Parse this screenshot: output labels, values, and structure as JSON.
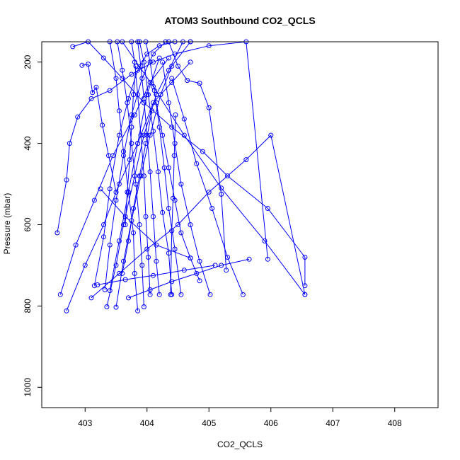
{
  "chart_data": {
    "type": "line",
    "title": "ATOM3 Southbound CO2_QCLS",
    "xlabel": "CO2_QCLS",
    "ylabel": "Pressure (mbar)",
    "xlim": [
      402.3,
      408.7
    ],
    "ylim": [
      1050,
      150
    ],
    "y_reversed": true,
    "xticks": [
      403,
      404,
      405,
      406,
      407,
      408
    ],
    "yticks": [
      200,
      400,
      600,
      800,
      1000
    ],
    "color": "#0000ff",
    "grid": false,
    "legend": "none",
    "series": [
      {
        "x": [
          402.8,
          403.05,
          403.3,
          403.6,
          403.95,
          404.4,
          404.9,
          405.3,
          405.95,
          406.55,
          406.55
        ],
        "y": [
          162,
          150,
          190,
          240,
          300,
          360,
          420,
          480,
          560,
          680,
          750
        ]
      },
      {
        "x": [
          402.55,
          402.7,
          402.75,
          402.88,
          403.1,
          403.4,
          403.75,
          404.1,
          404.45,
          405.0,
          405.6,
          405.95
        ],
        "y": [
          620,
          490,
          400,
          335,
          290,
          270,
          230,
          200,
          180,
          160,
          150,
          685
        ]
      },
      {
        "x": [
          402.7,
          403.0,
          403.3,
          403.55,
          403.85,
          404.1,
          404.4,
          404.7
        ],
        "y": [
          812,
          700,
          600,
          500,
          400,
          300,
          250,
          200
        ]
      },
      {
        "x": [
          402.6,
          402.85,
          403.15,
          403.45,
          403.8,
          404.05,
          404.35
        ],
        "y": [
          772,
          650,
          540,
          430,
          330,
          250,
          190
        ]
      },
      {
        "x": [
          402.95,
          403.05,
          403.12,
          403.18,
          403.28,
          403.38,
          403.5
        ],
        "y": [
          208,
          205,
          275,
          262,
          355,
          430,
          520
        ]
      },
      {
        "x": [
          403.15,
          403.3,
          403.4,
          403.55,
          403.7,
          403.85,
          404.0,
          404.2,
          404.45,
          404.7
        ],
        "y": [
          750,
          630,
          512,
          380,
          290,
          220,
          180,
          160,
          150,
          150
        ]
      },
      {
        "x": [
          403.32,
          403.4,
          403.5,
          403.62,
          403.75,
          403.92,
          404.1,
          404.3
        ],
        "y": [
          760,
          650,
          540,
          430,
          330,
          240,
          180,
          150
        ]
      },
      {
        "x": [
          403.35,
          403.5,
          403.62,
          403.8,
          403.95,
          404.15,
          404.35,
          404.58
        ],
        "y": [
          802,
          700,
          600,
          480,
          380,
          280,
          220,
          150
        ]
      },
      {
        "x": [
          403.5,
          403.62,
          403.75,
          403.9,
          404.05,
          404.22,
          404.4,
          404.7
        ],
        "y": [
          803,
          690,
          590,
          480,
          380,
          280,
          210,
          150
        ]
      },
      {
        "x": [
          403.85,
          403.8,
          403.78,
          403.7,
          403.62,
          403.55,
          403.5,
          403.4
        ],
        "y": [
          812,
          720,
          620,
          520,
          420,
          320,
          240,
          150
        ]
      },
      {
        "x": [
          403.95,
          403.92,
          403.88,
          403.82,
          403.75,
          403.68,
          403.6,
          403.52
        ],
        "y": [
          802,
          700,
          600,
          500,
          400,
          300,
          220,
          150
        ]
      },
      {
        "x": [
          404.05,
          404.02,
          403.98,
          403.95,
          403.9,
          403.85,
          403.8,
          403.75
        ],
        "y": [
          772,
          680,
          580,
          480,
          380,
          280,
          200,
          150
        ]
      },
      {
        "x": [
          404.2,
          404.15,
          404.1,
          404.05,
          404.0,
          403.95,
          403.9,
          403.85
        ],
        "y": [
          772,
          690,
          580,
          470,
          380,
          290,
          210,
          150
        ]
      },
      {
        "x": [
          404.4,
          404.35,
          404.25,
          404.18,
          404.1,
          404.02,
          403.95,
          403.88
        ],
        "y": [
          772,
          670,
          570,
          470,
          370,
          280,
          200,
          150
        ]
      },
      {
        "x": [
          404.55,
          404.45,
          404.35,
          404.28,
          404.2,
          404.12,
          404.05,
          403.98
        ],
        "y": [
          772,
          660,
          560,
          460,
          360,
          270,
          200,
          150
        ]
      },
      {
        "x": [
          404.85,
          404.7,
          404.55,
          404.45,
          404.35,
          404.25,
          404.15
        ],
        "y": [
          738,
          682,
          620,
          540,
          460,
          380,
          300
        ]
      },
      {
        "x": [
          405.02,
          404.85,
          404.7,
          404.55,
          404.45,
          404.35,
          404.25
        ],
        "y": [
          772,
          690,
          600,
          500,
          400,
          300,
          200
        ]
      },
      {
        "x": [
          405.28,
          405.2,
          405.0,
          404.85,
          404.65,
          404.5,
          404.35
        ],
        "y": [
          712,
          525,
          312,
          252,
          245,
          210,
          150
        ]
      },
      {
        "x": [
          405.55,
          405.3,
          405.05,
          404.8,
          404.6,
          404.4
        ],
        "y": [
          772,
          680,
          560,
          450,
          340,
          240
        ]
      },
      {
        "x": [
          405.65,
          405.2,
          404.8,
          404.4,
          404.05,
          403.7
        ],
        "y": [
          685,
          700,
          720,
          740,
          760,
          780
        ]
      },
      {
        "x": [
          406.55,
          405.9,
          405.2,
          404.6,
          404.1,
          403.6
        ],
        "y": [
          772,
          640,
          510,
          380,
          260,
          150
        ]
      },
      {
        "x": [
          403.1,
          403.55,
          404.0,
          404.5,
          405.0,
          405.6,
          406.0,
          406.55
        ],
        "y": [
          780,
          720,
          660,
          600,
          520,
          440,
          380,
          772
        ]
      },
      {
        "x": [
          403.2,
          403.65,
          404.1,
          404.6,
          405.1
        ],
        "y": [
          748,
          735,
          725,
          712,
          700
        ]
      },
      {
        "x": [
          403.25,
          403.65,
          404.15,
          404.7
        ],
        "y": [
          512,
          580,
          650,
          682
        ]
      },
      {
        "x": [
          403.4,
          403.55,
          403.7,
          403.85,
          404.0,
          404.2
        ],
        "y": [
          762,
          640,
          520,
          400,
          280,
          190
        ]
      },
      {
        "x": [
          403.6,
          403.7,
          403.78,
          403.88,
          403.98,
          404.08
        ],
        "y": [
          720,
          640,
          560,
          480,
          400,
          320
        ]
      },
      {
        "x": [
          403.65,
          403.68,
          403.72,
          403.75,
          403.78,
          403.82
        ],
        "y": [
          600,
          520,
          440,
          360,
          280,
          210
        ]
      },
      {
        "x": [
          404.38,
          404.4,
          404.42,
          404.44,
          404.46
        ],
        "y": [
          772,
          615,
          535,
          430,
          330
        ]
      }
    ]
  }
}
